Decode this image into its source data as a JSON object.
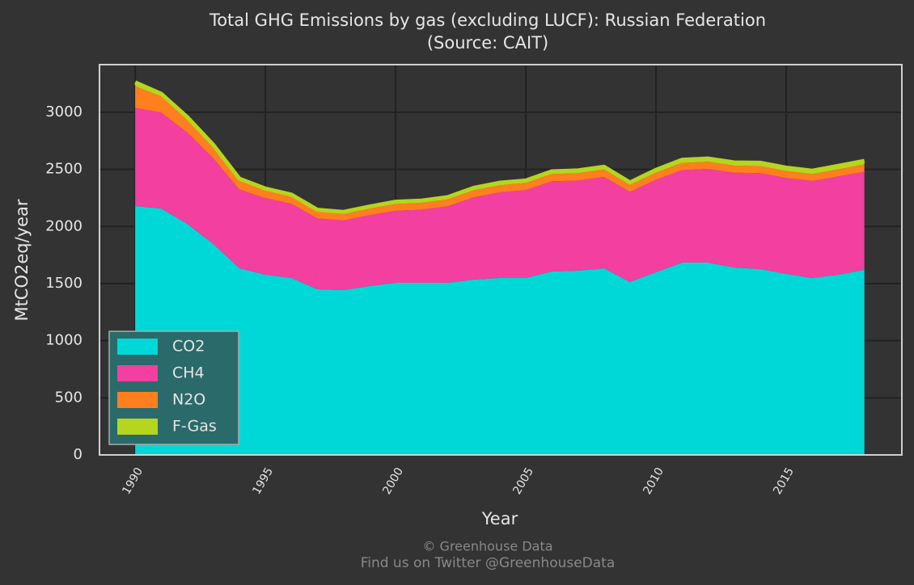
{
  "chart_data": {
    "type": "stacked-area",
    "title": "Total GHG Emissions by gas (excluding LUCF): Russian Federation",
    "subtitle": "(Source: CAIT)",
    "x_label": "Year",
    "y_label": "MtCO2eq/year",
    "caption": [
      "© Greenhouse Data",
      "Find us on Twitter @GreenhouseData"
    ],
    "x": [
      1990,
      1991,
      1992,
      1993,
      1994,
      1995,
      1996,
      1997,
      1998,
      1999,
      2000,
      2001,
      2002,
      2003,
      2004,
      2005,
      2006,
      2007,
      2008,
      2009,
      2010,
      2011,
      2012,
      2013,
      2014,
      2015,
      2016,
      2017,
      2018
    ],
    "series": [
      {
        "name": "CO2",
        "color": "#00d8d8",
        "values": [
          2179,
          2158,
          2023,
          1847,
          1634,
          1578,
          1549,
          1450,
          1443,
          1479,
          1507,
          1507,
          1507,
          1535,
          1549,
          1549,
          1606,
          1613,
          1634,
          1514,
          1599,
          1684,
          1684,
          1641,
          1627,
          1585,
          1549,
          1578,
          1620
        ]
      },
      {
        "name": "CH4",
        "color": "#f23fa0",
        "values": [
          860,
          840,
          800,
          750,
          690,
          670,
          650,
          620,
          610,
          620,
          630,
          640,
          670,
          720,
          750,
          770,
          790,
          790,
          800,
          790,
          810,
          810,
          820,
          830,
          840,
          840,
          850,
          860,
          860
        ]
      },
      {
        "name": "N2O",
        "color": "#ff7f1e",
        "values": [
          190,
          140,
          115,
          100,
          80,
          70,
          65,
          60,
          58,
          58,
          60,
          60,
          60,
          62,
          62,
          62,
          63,
          63,
          64,
          60,
          62,
          63,
          63,
          62,
          62,
          60,
          60,
          62,
          63
        ]
      },
      {
        "name": "F-Gas",
        "color": "#b5d51e",
        "values": [
          33,
          24,
          20,
          18,
          15,
          14,
          15,
          16,
          17,
          18,
          20,
          20,
          20,
          22,
          22,
          22,
          24,
          25,
          25,
          22,
          25,
          27,
          28,
          28,
          29,
          30,
          30,
          31,
          32
        ]
      }
    ],
    "xlim": [
      1988.63,
      2019.44
    ],
    "xticks": [
      1990,
      1995,
      2000,
      2005,
      2010,
      2015
    ],
    "ylim": [
      0,
      3417
    ],
    "yticks": [
      0,
      500,
      1000,
      1500,
      2000,
      2500,
      3000
    ],
    "grid": true,
    "legend": "bottom-left"
  }
}
